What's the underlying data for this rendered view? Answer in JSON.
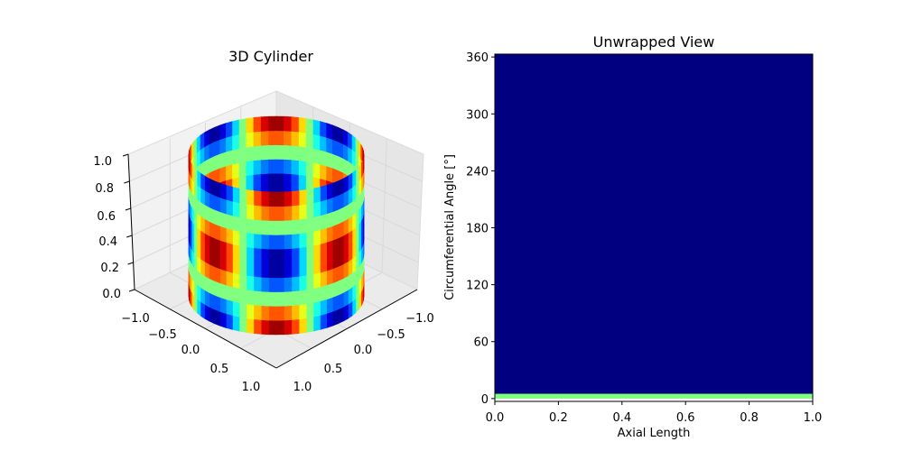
{
  "chart_data": [
    {
      "type": "surface3d",
      "title": "3D Cylinder",
      "xlabel": "",
      "ylabel": "",
      "zlabel": "",
      "x_ticks": [
        "−1.0",
        "−0.5",
        "0.0",
        "0.5",
        "1.0"
      ],
      "y_ticks": [
        "−1.0",
        "−0.5",
        "0.0",
        "0.5",
        "1.0"
      ],
      "z_ticks": [
        "0.0",
        "0.2",
        "0.4",
        "0.6",
        "0.8",
        "1.0"
      ],
      "xlim": [
        -1,
        1
      ],
      "ylim": [
        -1,
        1
      ],
      "zlim": [
        0,
        1
      ],
      "surface": "cylinder",
      "colormap": "jet",
      "grid": true
    },
    {
      "type": "heatmap",
      "title": "Unwrapped View",
      "xlabel": "Axial Length",
      "ylabel": "Circumferential Angle [°]",
      "x_ticks": [
        "0.0",
        "0.2",
        "0.4",
        "0.6",
        "0.8",
        "1.0"
      ],
      "y_ticks": [
        "0",
        "60",
        "120",
        "180",
        "240",
        "300",
        "360"
      ],
      "xlim": [
        0,
        1
      ],
      "ylim": [
        -3,
        363
      ],
      "colormap": "jet",
      "bands": [
        {
          "y_from": 0,
          "y_to": 5,
          "color": "#7cff7a"
        },
        {
          "y_from": 5,
          "y_to": 363,
          "color": "#000080"
        }
      ]
    }
  ]
}
